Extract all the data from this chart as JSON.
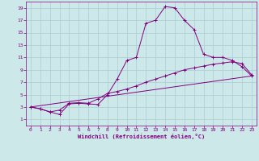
{
  "title": "",
  "xlabel": "Windchill (Refroidissement éolien,°C)",
  "bg_color": "#cce8e8",
  "line_color": "#800080",
  "grid_color": "#b0d0d8",
  "xlim": [
    -0.5,
    23.5
  ],
  "ylim": [
    0,
    20
  ],
  "xticks": [
    0,
    1,
    2,
    3,
    4,
    5,
    6,
    7,
    8,
    9,
    10,
    11,
    12,
    13,
    14,
    15,
    16,
    17,
    18,
    19,
    20,
    21,
    22,
    23
  ],
  "yticks": [
    1,
    3,
    5,
    7,
    9,
    11,
    13,
    15,
    17,
    19
  ],
  "curve1_x": [
    0,
    1,
    2,
    3,
    4,
    5,
    6,
    7,
    8,
    9,
    10,
    11,
    12,
    13,
    14,
    15,
    16,
    17,
    18,
    19,
    20,
    21,
    22,
    23
  ],
  "curve1_y": [
    3.0,
    2.7,
    2.2,
    1.8,
    3.5,
    3.6,
    3.5,
    3.4,
    5.0,
    7.5,
    10.5,
    11.0,
    16.5,
    17.0,
    19.2,
    19.0,
    17.0,
    15.5,
    11.5,
    11.0,
    11.0,
    10.5,
    9.5,
    8.0
  ],
  "curve2_x": [
    0,
    1,
    2,
    3,
    4,
    5,
    6,
    7,
    8,
    9,
    10,
    11,
    12,
    13,
    14,
    15,
    16,
    17,
    18,
    19,
    20,
    21,
    22,
    23
  ],
  "curve2_y": [
    3.0,
    2.7,
    2.2,
    2.5,
    3.6,
    3.7,
    3.6,
    4.3,
    5.2,
    5.5,
    5.9,
    6.4,
    7.0,
    7.5,
    8.0,
    8.5,
    9.0,
    9.3,
    9.6,
    9.9,
    10.1,
    10.3,
    10.0,
    8.2
  ],
  "curve3_x": [
    0,
    23
  ],
  "curve3_y": [
    3.0,
    8.0
  ],
  "marker": "+"
}
